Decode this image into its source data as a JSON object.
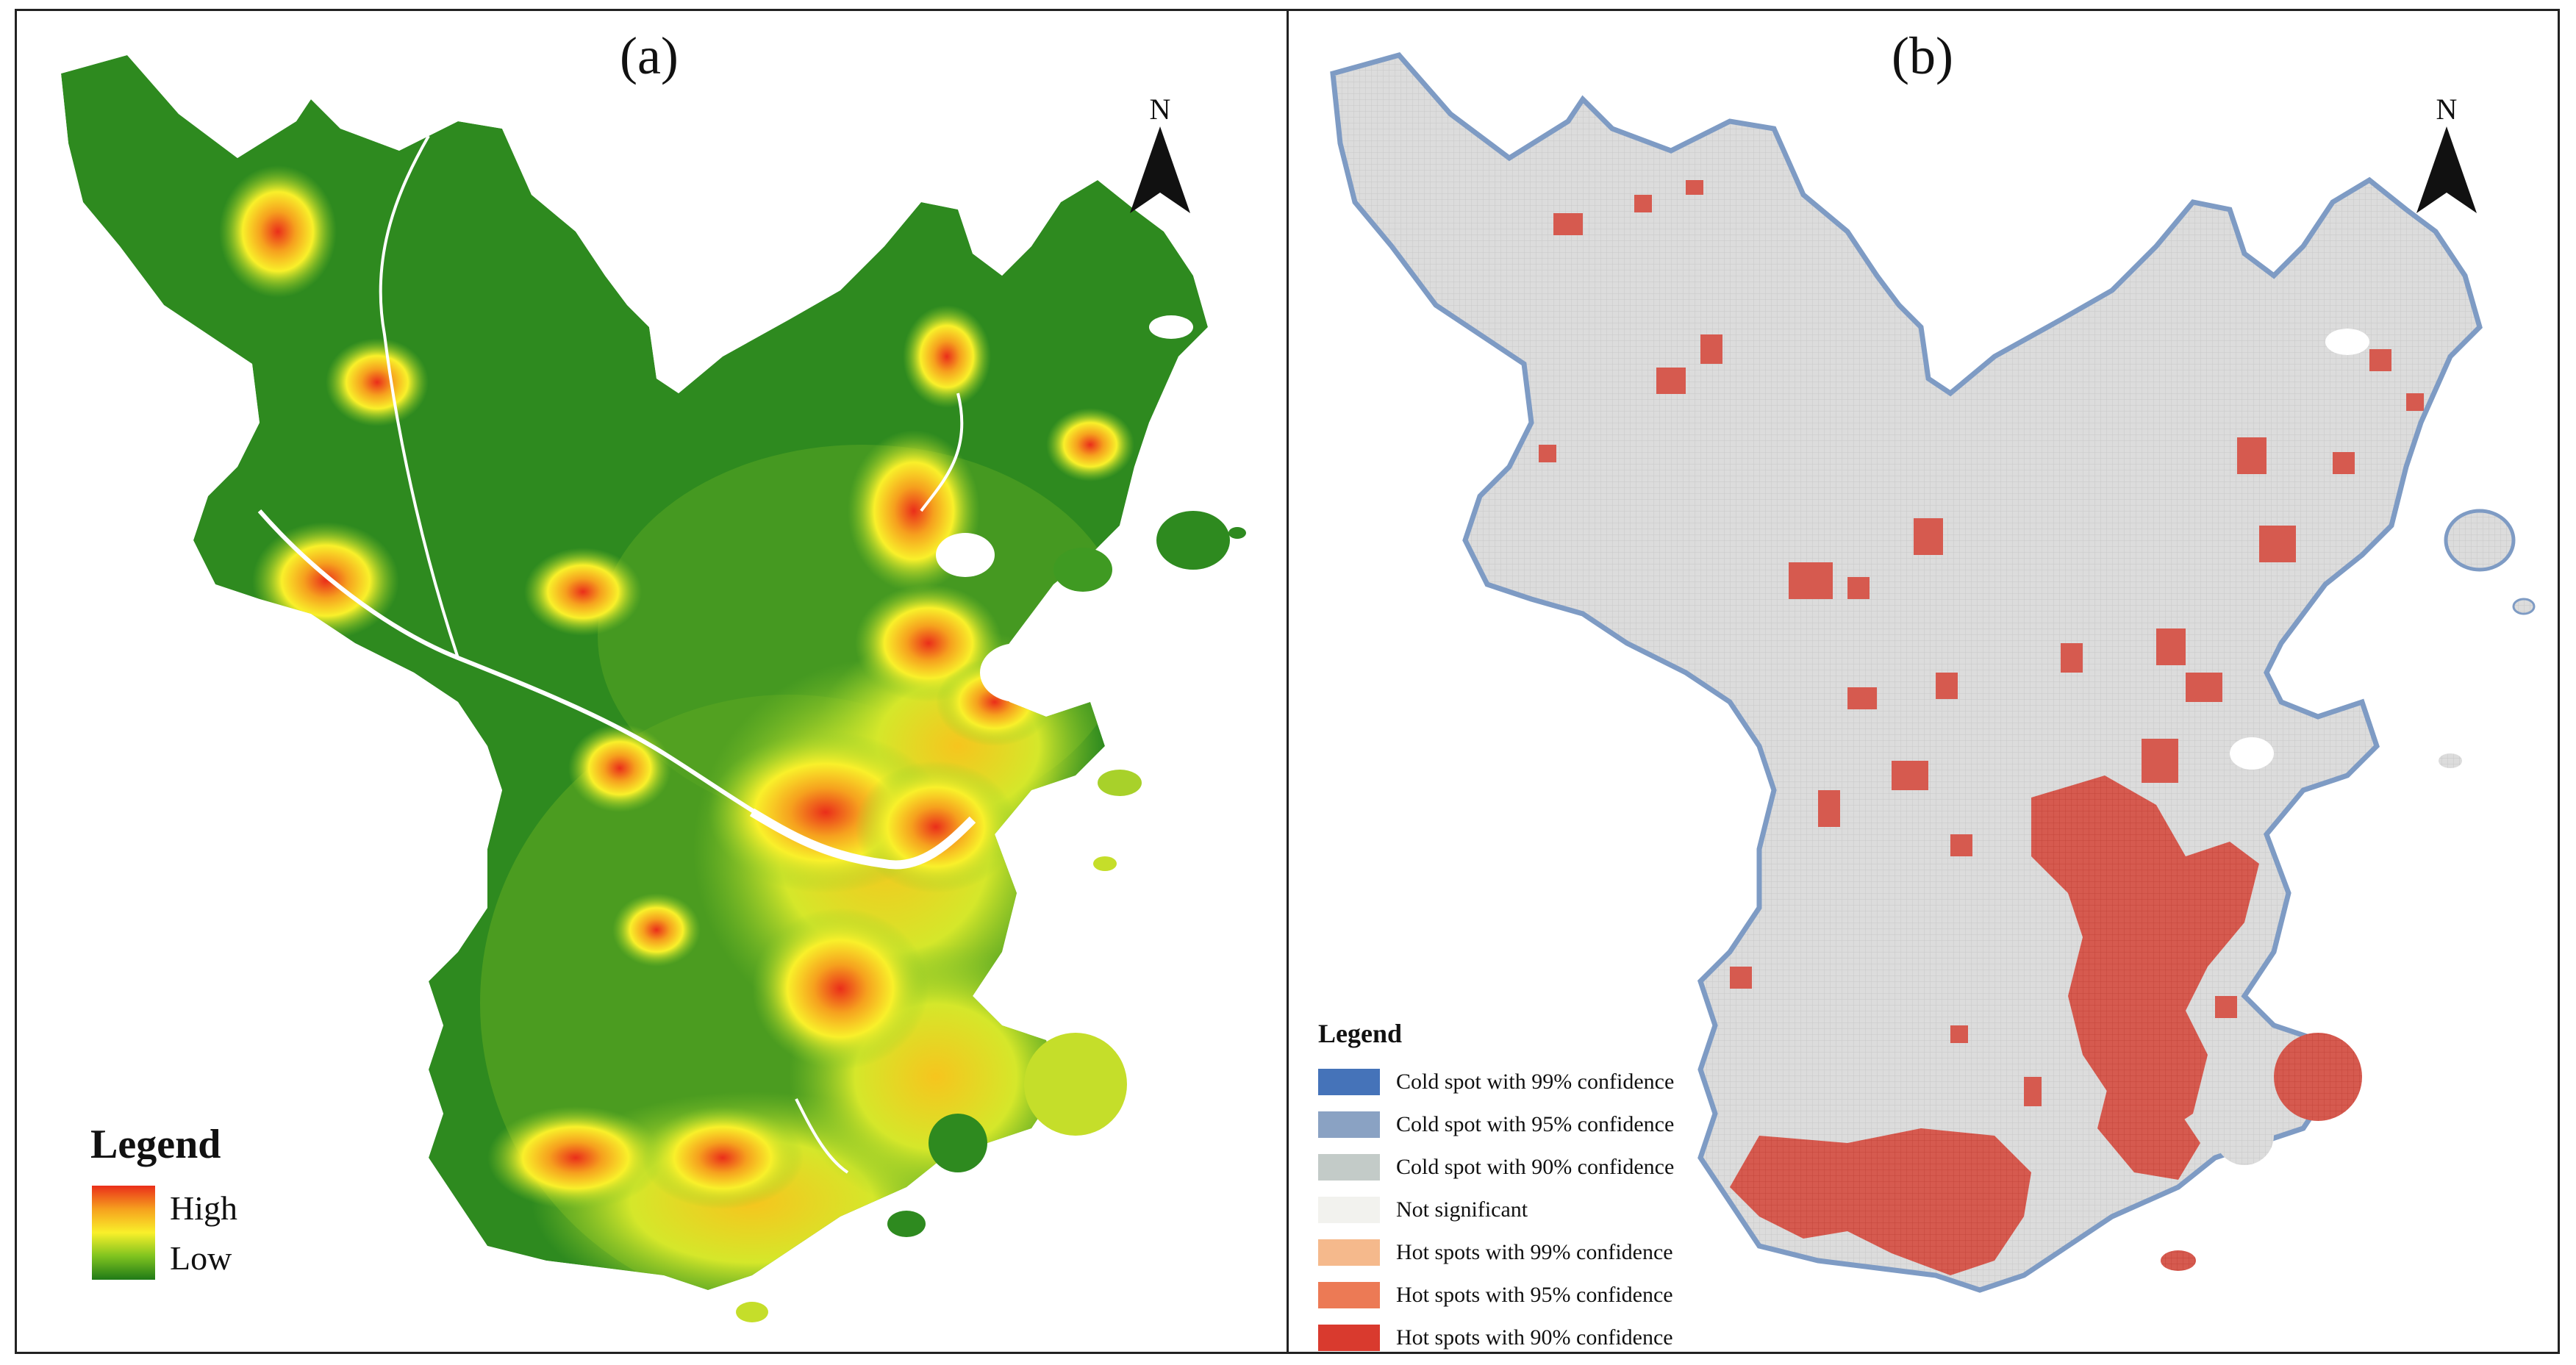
{
  "panel_a": {
    "label": "(a)",
    "north": "N",
    "legend": {
      "title": "Legend",
      "high_label": "High",
      "low_label": "Low",
      "ramp_colors": [
        "#ea2e1a",
        "#f6a11e",
        "#f9f02a",
        "#7fc31f",
        "#1f7a17"
      ]
    }
  },
  "panel_b": {
    "label": "(b)",
    "north": "N",
    "legend": {
      "title": "Legend",
      "items": [
        {
          "label": "Cold spot with 99% confidence",
          "color": "#4573b9"
        },
        {
          "label": "Cold spot with 95% confidence",
          "color": "#8aa2c3"
        },
        {
          "label": "Cold spot with 90% confidence",
          "color": "#c3cbc8"
        },
        {
          "label": "Not significant",
          "color": "#f2f2ee"
        },
        {
          "label": "Hot spots with 99% confidence",
          "color": "#f5b98c"
        },
        {
          "label": "Hot spots with 95% confidence",
          "color": "#ec7a55"
        },
        {
          "label": "Hot spots with 90% confidence",
          "color": "#d93a2e"
        }
      ]
    }
  },
  "colors": {
    "base_green": "#2e8a1f",
    "hotspot_red": "#d9534b",
    "not_significant_grey": "#d8d8d8",
    "water": "#ffffff",
    "frame": "#222222"
  }
}
